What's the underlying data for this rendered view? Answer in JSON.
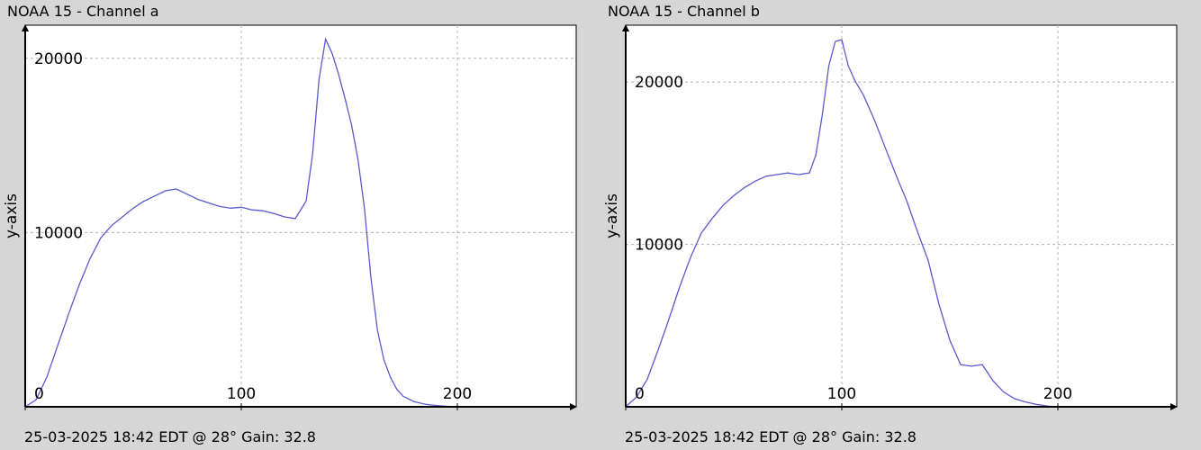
{
  "charts": [
    {
      "title": "NOAA 15 - Channel a",
      "footer": "25-03-2025 18:42 EDT @ 28° Gain: 32.8",
      "ylabel": "y-axis",
      "xticks": [
        "0",
        "100",
        "200"
      ],
      "yticks": [
        "10000",
        "20000"
      ]
    },
    {
      "title": "NOAA 15 - Channel b",
      "footer": "25-03-2025 18:42 EDT @ 28° Gain: 32.8",
      "ylabel": "y-axis",
      "xticks": [
        "0",
        "100",
        "200"
      ],
      "yticks": [
        "10000",
        "20000"
      ]
    }
  ],
  "colors": {
    "line": "#5a5ad0",
    "grid": "#b4b4b4",
    "axis": "#000000",
    "plot_bg": "#ffffff"
  },
  "chart_data": [
    {
      "type": "line",
      "title": "NOAA 15 - Channel a",
      "xlabel": "",
      "ylabel": "y-axis",
      "xlim": [
        0,
        255
      ],
      "ylim": [
        0,
        21900
      ],
      "grid": true,
      "x": [
        0,
        5,
        10,
        15,
        20,
        25,
        30,
        35,
        40,
        45,
        50,
        55,
        60,
        65,
        70,
        75,
        80,
        85,
        90,
        95,
        100,
        105,
        110,
        115,
        120,
        125,
        130,
        133,
        136,
        139,
        142,
        145,
        148,
        151,
        154,
        157,
        160,
        163,
        166,
        169,
        172,
        175,
        180,
        185,
        190,
        195,
        200
      ],
      "values": [
        0,
        400,
        1700,
        3500,
        5300,
        7000,
        8500,
        9700,
        10400,
        10900,
        11400,
        11800,
        12100,
        12400,
        12500,
        12200,
        11900,
        11700,
        11500,
        11400,
        11450,
        11300,
        11250,
        11100,
        10900,
        10800,
        11800,
        14500,
        18800,
        21100,
        20300,
        19100,
        17700,
        16200,
        14200,
        11400,
        7400,
        4400,
        2700,
        1700,
        1000,
        600,
        300,
        150,
        80,
        30,
        0
      ]
    },
    {
      "type": "line",
      "title": "NOAA 15 - Channel b",
      "xlabel": "",
      "ylabel": "y-axis",
      "xlim": [
        0,
        255
      ],
      "ylim": [
        0,
        23500
      ],
      "grid": true,
      "x": [
        0,
        5,
        10,
        15,
        20,
        25,
        30,
        35,
        40,
        45,
        50,
        55,
        60,
        65,
        70,
        75,
        80,
        85,
        88,
        91,
        94,
        97,
        100,
        103,
        106,
        110,
        115,
        120,
        125,
        130,
        135,
        140,
        145,
        150,
        155,
        160,
        165,
        170,
        175,
        180,
        185,
        190,
        195,
        200
      ],
      "values": [
        0,
        600,
        1700,
        3500,
        5400,
        7400,
        9200,
        10700,
        11600,
        12400,
        13000,
        13500,
        13900,
        14200,
        14300,
        14400,
        14300,
        14400,
        15500,
        18000,
        21000,
        22500,
        22600,
        21000,
        20100,
        19200,
        17700,
        16000,
        14300,
        12700,
        10800,
        9000,
        6300,
        4100,
        2600,
        2500,
        2600,
        1600,
        900,
        500,
        300,
        150,
        50,
        0
      ]
    }
  ]
}
